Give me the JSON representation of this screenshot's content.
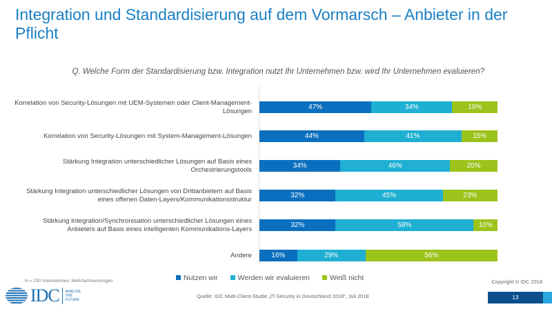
{
  "title": "Integration und Standardisierung auf dem Vormarsch – Anbieter in der Pflicht",
  "question": "Q. Welche Form der Standardisierung bzw. Integration nutzt Ihr Unternehmen bzw. wird Ihr Unternehmen evaluieren?",
  "chart_data": {
    "type": "bar",
    "orientation": "horizontal-stacked-100",
    "categories": [
      "Korrelation von Security-Lösungen mit UEM-Systemen oder Client-Management-Lösungen",
      "Korrelation von Security-Lösungen mit System-Management-Lösungen",
      "Stärkung Integration unterschiedlicher Lösungen auf Basis eines Orchestrierungstools",
      "Stärkung Integration unterschiedlicher Lösungen von Drittanbietern auf Basis eines offenen Daten-Layers/Kommunikationsstruktur",
      "Stärkung Integration/Synchronisation unterschiedlicher Lösungen eines Anbieters auf Basis eines intelligenten Kommunikations-Layers",
      "Andere"
    ],
    "series": [
      {
        "name": "Nutzen wir",
        "color": "#0b6fbf",
        "values": [
          47,
          44,
          34,
          32,
          32,
          16
        ]
      },
      {
        "name": "Werden wir evaluieren",
        "color": "#1eafd2",
        "values": [
          34,
          41,
          46,
          45,
          58,
          29
        ]
      },
      {
        "name": "Weiß nicht",
        "color": "#9cc31b",
        "values": [
          19,
          15,
          20,
          23,
          10,
          56
        ]
      }
    ],
    "unit": "%",
    "legend": "bottom"
  },
  "footer": {
    "n_note": "N = 230 Unternehmen; Mehrfachnennungen",
    "copyright": "Copyright © IDC 2018",
    "source": "Quelle: IDC Multi-Client-Studie „IT-Security in Deutschland 2018“, Juli 2018",
    "page": "13",
    "logo": "IDC",
    "logo_tagline": "ANALYZE THE FUTURE"
  }
}
